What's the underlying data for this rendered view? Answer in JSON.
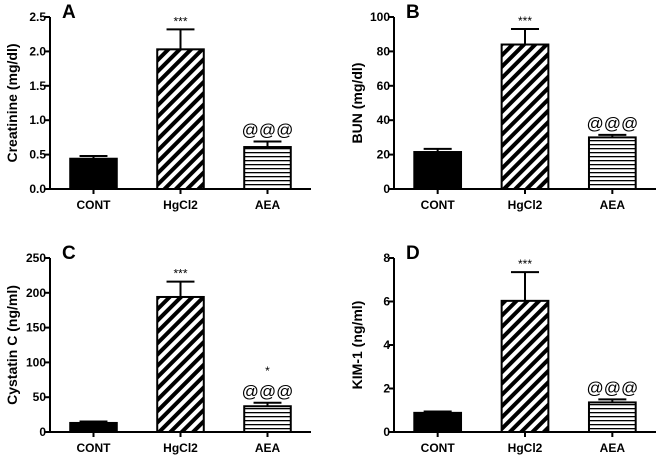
{
  "chart_data": [
    {
      "type": "bar",
      "panel": "A",
      "ylabel": "Creatinine (mg/dl)",
      "categories": [
        "CONT",
        "HgCl2",
        "AEA"
      ],
      "values": [
        0.44,
        2.03,
        0.61
      ],
      "errors": [
        0.04,
        0.29,
        0.08
      ],
      "annotations": [
        [],
        [
          "***"
        ],
        [
          "@@@"
        ]
      ],
      "ylim": [
        0,
        2.5
      ],
      "yticks": [
        0,
        0.5,
        1.0,
        1.5,
        2.0,
        2.5
      ],
      "ytick_labels": [
        "0.0",
        "0.5",
        "1.0",
        "1.5",
        "2.0",
        "2.5"
      ]
    },
    {
      "type": "bar",
      "panel": "B",
      "ylabel": "BUN (mg/dl)",
      "categories": [
        "CONT",
        "HgCl2",
        "AEA"
      ],
      "values": [
        21.5,
        84,
        30
      ],
      "errors": [
        1.8,
        9,
        1.5
      ],
      "annotations": [
        [],
        [
          "***"
        ],
        [
          "@@@"
        ]
      ],
      "ylim": [
        0,
        100
      ],
      "yticks": [
        0,
        20,
        40,
        60,
        80,
        100
      ],
      "ytick_labels": [
        "0",
        "20",
        "40",
        "60",
        "80",
        "100"
      ]
    },
    {
      "type": "bar",
      "panel": "C",
      "ylabel": "Cystatin C (ng/ml)",
      "categories": [
        "CONT",
        "HgCl2",
        "AEA"
      ],
      "values": [
        13,
        194,
        37
      ],
      "errors": [
        2,
        22,
        5
      ],
      "annotations": [
        [],
        [
          "***"
        ],
        [
          "@@@",
          "*"
        ]
      ],
      "ylim": [
        0,
        250
      ],
      "yticks": [
        0,
        50,
        100,
        150,
        200,
        250
      ],
      "ytick_labels": [
        "0",
        "50",
        "100",
        "150",
        "200",
        "250"
      ]
    },
    {
      "type": "bar",
      "panel": "D",
      "ylabel": "KIM-1 (ng/ml)",
      "categories": [
        "CONT",
        "HgCl2",
        "AEA"
      ],
      "values": [
        0.88,
        6.03,
        1.36
      ],
      "errors": [
        0.06,
        1.32,
        0.14
      ],
      "annotations": [
        [],
        [
          "***"
        ],
        [
          "@@@"
        ]
      ],
      "ylim": [
        0,
        8
      ],
      "yticks": [
        0,
        2,
        4,
        6,
        8
      ],
      "ytick_labels": [
        "0",
        "2",
        "4",
        "6",
        "8"
      ]
    }
  ],
  "bar_styles": [
    "solid",
    "diagonal-hatch",
    "horizontal-hatch"
  ],
  "colors": {
    "ink": "#000000",
    "background": "#ffffff"
  }
}
